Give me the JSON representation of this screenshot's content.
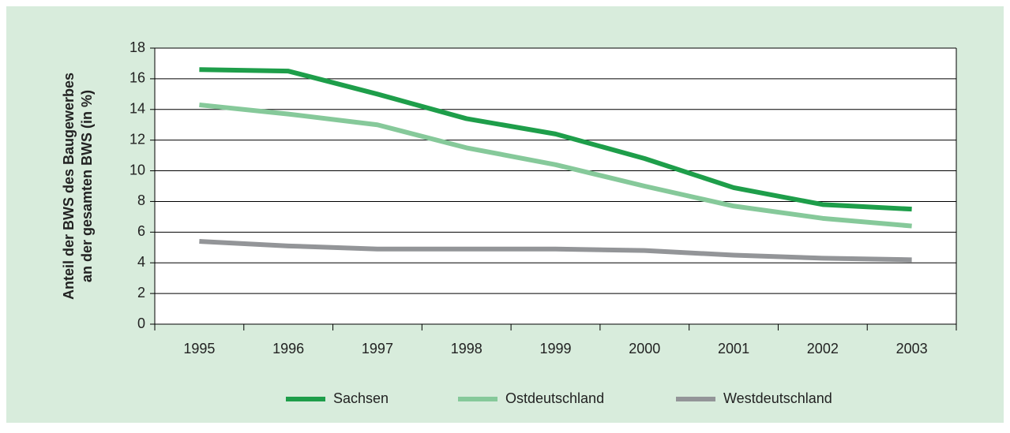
{
  "chart_data": {
    "type": "line",
    "y_label": [
      "Anteil der BWS des Baugewerbes",
      "an der gesamten BWS (in %)"
    ],
    "categories": [
      "1995",
      "1996",
      "1997",
      "1998",
      "1999",
      "2000",
      "2001",
      "2002",
      "2003"
    ],
    "series": [
      {
        "name": "Sachsen",
        "color": "#1e9e4a",
        "values": [
          16.6,
          16.5,
          15.0,
          13.4,
          12.4,
          10.8,
          8.9,
          7.8,
          7.5
        ]
      },
      {
        "name": "Ostdeutschland",
        "color": "#86c99a",
        "values": [
          14.3,
          13.7,
          13.0,
          11.5,
          10.4,
          9.0,
          7.7,
          6.9,
          6.4
        ]
      },
      {
        "name": "Westdeutschland",
        "color": "#939598",
        "values": [
          5.4,
          5.1,
          4.9,
          4.9,
          4.9,
          4.8,
          4.5,
          4.3,
          4.2
        ]
      }
    ],
    "ylim": [
      0,
      18
    ],
    "yticks": [
      0,
      2,
      4,
      6,
      8,
      10,
      12,
      14,
      16,
      18
    ],
    "grid": true,
    "legend": "bottom"
  }
}
